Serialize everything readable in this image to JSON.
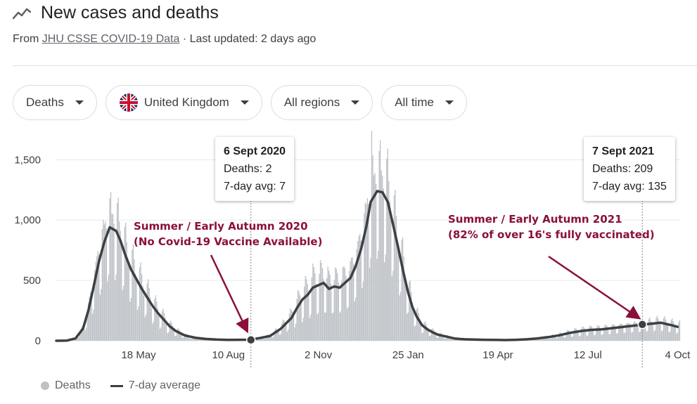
{
  "header": {
    "title": "New cases and deaths",
    "source_prefix": "From",
    "source_link": "JHU CSSE COVID-19 Data",
    "updated": "· Last updated: 2 days ago"
  },
  "filters": {
    "metric": "Deaths",
    "country": "United Kingdom",
    "region": "All regions",
    "range": "All time"
  },
  "legend": {
    "bars": "Deaths",
    "line": "7-day average"
  },
  "colors": {
    "bars": "#bdc1c6",
    "line": "#3c4043",
    "annotation": "#8b1038"
  },
  "tooltips": [
    {
      "date": "6 Sept 2020",
      "deaths_label": "Deaths: 2",
      "avg_label": "7-day avg: 7"
    },
    {
      "date": "7 Sept 2021",
      "deaths_label": "Deaths: 209",
      "avg_label": "7-day avg: 135"
    }
  ],
  "chart_data": {
    "type": "bar",
    "title": "",
    "xlabel": "",
    "ylabel": "",
    "ylim": [
      0,
      1700
    ],
    "yticks": [
      0,
      500,
      1000,
      1500
    ],
    "ytick_labels": [
      "0",
      "500",
      "1,000",
      "1,500"
    ],
    "xtick_labels": [
      "18 May",
      "10 Aug",
      "2 Nov",
      "25 Jan",
      "19 Apr",
      "12 Jul",
      "4 Oct"
    ],
    "xtick_days": [
      77,
      161,
      245,
      329,
      413,
      497,
      581
    ],
    "x_start_day": 0,
    "x_end_day": 584,
    "grid": true,
    "legend_position": "bottom-left",
    "series": [
      {
        "name": "7-day average",
        "type": "line",
        "days": [
          0,
          10,
          18,
          25,
          30,
          35,
          40,
          45,
          50,
          56,
          60,
          65,
          70,
          75,
          80,
          85,
          90,
          95,
          100,
          106,
          112,
          120,
          130,
          140,
          150,
          160,
          170,
          180,
          190,
          200,
          210,
          220,
          225,
          230,
          235,
          240,
          245,
          250,
          255,
          260,
          265,
          270,
          275,
          280,
          285,
          290,
          294,
          300,
          305,
          310,
          315,
          320,
          325,
          329,
          333,
          337,
          342,
          347,
          352,
          357,
          362,
          367,
          372,
          377,
          382,
          390,
          400,
          410,
          420,
          430,
          440,
          450,
          460,
          470,
          480,
          490,
          500,
          510,
          520,
          530,
          540,
          550,
          560,
          565,
          570,
          575,
          581
        ],
        "values": [
          0,
          2,
          20,
          100,
          250,
          450,
          660,
          820,
          940,
          910,
          830,
          700,
          590,
          510,
          430,
          360,
          290,
          230,
          180,
          120,
          80,
          45,
          25,
          15,
          10,
          7,
          8,
          9,
          22,
          40,
          100,
          190,
          270,
          340,
          380,
          440,
          460,
          480,
          430,
          450,
          440,
          480,
          520,
          620,
          760,
          950,
          1150,
          1240,
          1230,
          1150,
          960,
          760,
          550,
          400,
          280,
          200,
          130,
          95,
          70,
          50,
          40,
          30,
          20,
          15,
          12,
          10,
          8,
          7,
          6,
          8,
          12,
          20,
          30,
          45,
          65,
          80,
          90,
          95,
          105,
          115,
          125,
          135,
          145,
          150,
          140,
          130,
          115
        ]
      },
      {
        "name": "Deaths",
        "type": "bar",
        "peaks": [
          {
            "day": 50,
            "value": 1180
          },
          {
            "day": 295,
            "value": 1740
          }
        ]
      }
    ],
    "markers": [
      {
        "day": 182,
        "value": 7
      },
      {
        "day": 548,
        "value": 135
      }
    ],
    "annotations": [
      {
        "lines": [
          "Summer / Early Autumn 2020",
          "(No Covid-19 Vaccine Available)"
        ]
      },
      {
        "lines": [
          "Summer / Early Autumn 2021",
          "(82% of over 16's fully vaccinated)"
        ]
      }
    ]
  }
}
